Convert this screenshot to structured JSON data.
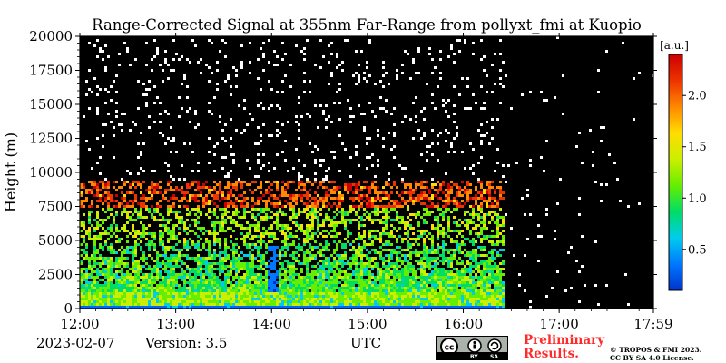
{
  "chart_data": {
    "type": "heatmap",
    "title": "Range-Corrected Signal at 355nm Far-Range from pollyxt_fmi at Kuopio",
    "ylabel": "Height (m)",
    "xlabel": "UTC",
    "ylim": [
      0,
      20000
    ],
    "y_ticks": [
      0,
      2500,
      5000,
      7500,
      10000,
      12500,
      15000,
      17500,
      20000
    ],
    "x_range_hours": [
      12.0,
      17.983
    ],
    "x_ticks": [
      {
        "value": 12.0,
        "label": "12:00"
      },
      {
        "value": 13.0,
        "label": "13:00"
      },
      {
        "value": 14.0,
        "label": "14:00"
      },
      {
        "value": 15.0,
        "label": "15:00"
      },
      {
        "value": 16.0,
        "label": "16:00"
      },
      {
        "value": 17.0,
        "label": "17:00"
      },
      {
        "value": 17.983,
        "label": "17:59"
      }
    ],
    "colorbar": {
      "label": "[a.u.]",
      "range": [
        0.1,
        2.4
      ],
      "ticks": [
        0.5,
        1.0,
        1.5,
        2.0
      ],
      "tick_labels": [
        "0.5",
        "1.0",
        "1.5",
        "2.0"
      ],
      "colors": [
        "#0033cc",
        "#0077ff",
        "#00ccee",
        "#00dd66",
        "#66ee00",
        "#ccee00",
        "#ffdd00",
        "#ff8800",
        "#ee3300",
        "#cc0000"
      ]
    },
    "signal_features": {
      "end_of_dense_signal_hour": 16.42,
      "strong_layer_top_m": 1300,
      "cloud_layer_m": [
        7500,
        9500
      ],
      "clear_gap_hour": 14.0,
      "noise_top_m": 20000
    }
  },
  "footer": {
    "date": "2023-02-07",
    "version": "Version: 3.5",
    "utc_label": "UTC",
    "cc_by": "BY",
    "cc_sa": "SA",
    "preliminary_line1": "Preliminary",
    "preliminary_line2": "Results.",
    "copyright_line1": "© TROPOS & FMI 2023.",
    "copyright_line2": "CC BY SA 4.0 License."
  }
}
